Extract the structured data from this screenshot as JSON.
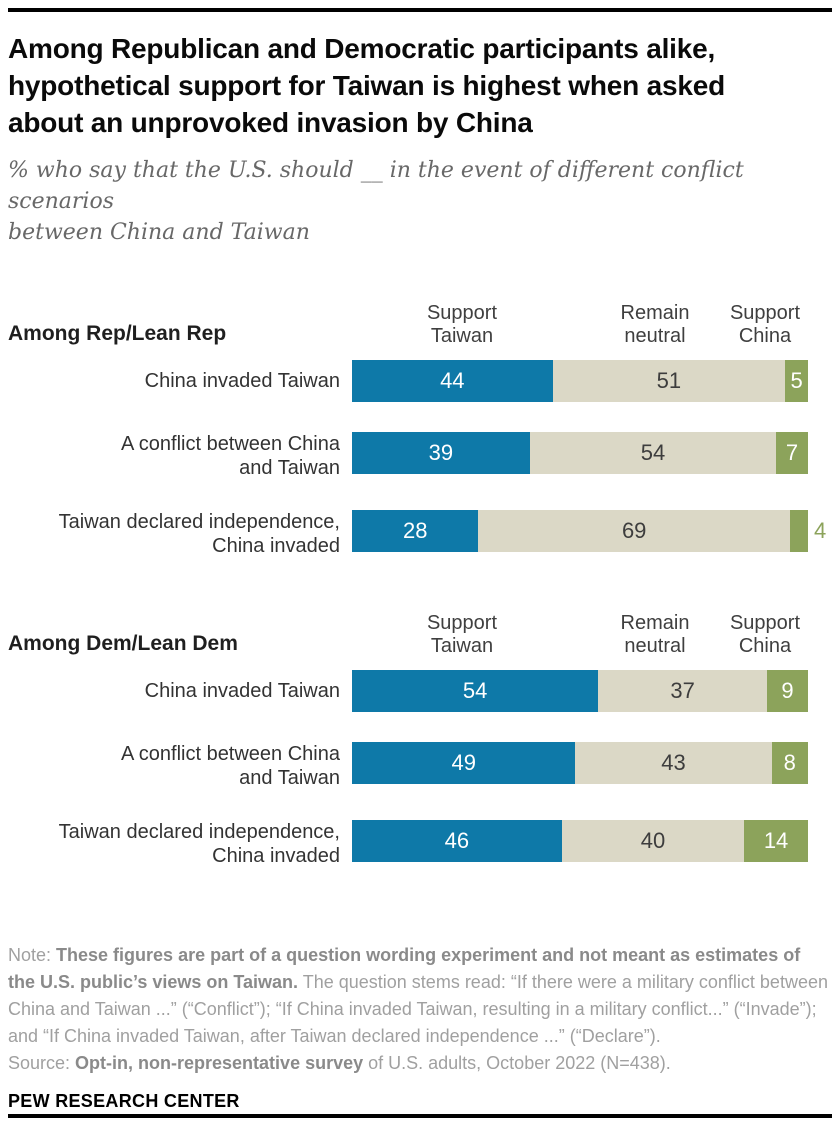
{
  "title": "Among Republican and Democratic participants alike,\nhypothetical support for Taiwan is highest when asked\nabout an unprovoked invasion by China",
  "subtitle": "% who say that the U.S. should __ in the event of different conflict scenarios\nbetween China and Taiwan",
  "colors": {
    "support_taiwan": "#0e79a8",
    "remain_neutral": "#dbd8c6",
    "support_china": "#8ca35b"
  },
  "chart_data": [
    {
      "type": "bar",
      "stacked": true,
      "orientation": "horizontal",
      "units": "%",
      "xlim": [
        0,
        100
      ],
      "group_label": "Among Rep/Lean Rep",
      "column_headers": [
        "Support\nTaiwan",
        "Remain\nneutral",
        "Support\nChina"
      ],
      "categories": [
        "China invaded Taiwan",
        "A conflict between China\nand Taiwan",
        "Taiwan declared independence,\nChina invaded"
      ],
      "series": [
        {
          "name": "Support Taiwan",
          "color": "#0e79a8",
          "values": [
            44,
            39,
            28
          ]
        },
        {
          "name": "Remain neutral",
          "color": "#dbd8c6",
          "values": [
            51,
            54,
            69
          ]
        },
        {
          "name": "Support China",
          "color": "#8ca35b",
          "values": [
            5,
            7,
            4
          ]
        }
      ]
    },
    {
      "type": "bar",
      "stacked": true,
      "orientation": "horizontal",
      "units": "%",
      "xlim": [
        0,
        100
      ],
      "group_label": "Among Dem/Lean Dem",
      "column_headers": [
        "Support\nTaiwan",
        "Remain\nneutral",
        "Support\nChina"
      ],
      "categories": [
        "China invaded Taiwan",
        "A conflict between China\nand Taiwan",
        "Taiwan declared independence,\nChina invaded"
      ],
      "series": [
        {
          "name": "Support Taiwan",
          "color": "#0e79a8",
          "values": [
            54,
            49,
            46
          ]
        },
        {
          "name": "Remain neutral",
          "color": "#dbd8c6",
          "values": [
            37,
            43,
            40
          ]
        },
        {
          "name": "Support China",
          "color": "#8ca35b",
          "values": [
            9,
            8,
            14
          ]
        }
      ]
    }
  ],
  "note": {
    "prefix": "Note: ",
    "bold": "These figures are part of a question wording experiment and not meant as estimates of the U.S. public’s views on Taiwan.",
    "rest": " The question stems read: “If there were a military conflict between China and Taiwan ...” (“Conflict”); “If China invaded Taiwan, resulting in a military conflict...” (“Invade”); and “If China invaded Taiwan, after Taiwan declared independence ...” (“Declare”)."
  },
  "source": {
    "prefix": "Source: ",
    "bold": "Opt-in, non-representative survey",
    "rest": " of U.S. adults, October 2022 (N=438)."
  },
  "footer_brand": "PEW RESEARCH CENTER"
}
